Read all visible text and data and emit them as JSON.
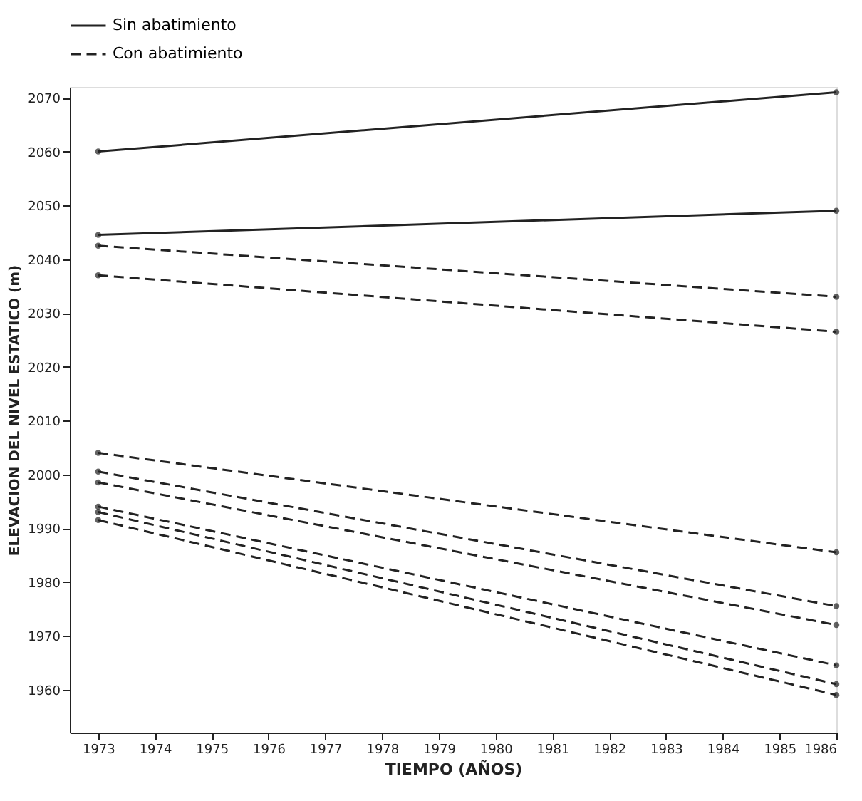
{
  "chart_data": {
    "type": "line",
    "xlabel": "TIEMPO (AÑOS)",
    "ylabel": "ELEVACION DEL NIVEL ESTATICO (m)",
    "x": [
      1973,
      1986
    ],
    "series": [
      {
        "name": "Sin abatimiento",
        "color": "#222222",
        "line_style": "solid",
        "values": [
          2060,
          2071
        ]
      },
      {
        "color": "#222222",
        "line_style": "solid",
        "values": [
          2044.5,
          2049
        ]
      },
      {
        "name": "Con abatimiento",
        "color": "#222222",
        "line_style": "dashed",
        "values": [
          2042.5,
          2033
        ]
      },
      {
        "color": "#222222",
        "line_style": "dashed",
        "values": [
          2037,
          2026.5
        ]
      },
      {
        "color": "#222222",
        "line_style": "dashed",
        "values": [
          2004,
          1985.5
        ]
      },
      {
        "color": "#222222",
        "line_style": "dashed",
        "values": [
          2000.5,
          1975.5
        ]
      },
      {
        "color": "#222222",
        "line_style": "dashed",
        "values": [
          1998.5,
          1972
        ]
      },
      {
        "color": "#222222",
        "line_style": "dashed",
        "values": [
          1994,
          1964.5
        ]
      },
      {
        "color": "#222222",
        "line_style": "dashed",
        "values": [
          1993,
          1961
        ]
      },
      {
        "color": "#222222",
        "line_style": "dashed",
        "values": [
          1991.5,
          1959
        ]
      }
    ],
    "xlim": [
      1972.5,
      1986
    ],
    "xticks": [
      1973,
      1974,
      1975,
      1976,
      1977,
      1978,
      1979,
      1980,
      1981,
      1982,
      1983,
      1984,
      1985,
      1986
    ],
    "ylim": [
      1952,
      2072
    ],
    "yticks": [
      1960,
      1970,
      1980,
      1990,
      2000,
      2010,
      2020,
      2030,
      2040,
      2050,
      2060,
      2070
    ],
    "grid": false,
    "legend": "top",
    "marker": "circle"
  }
}
